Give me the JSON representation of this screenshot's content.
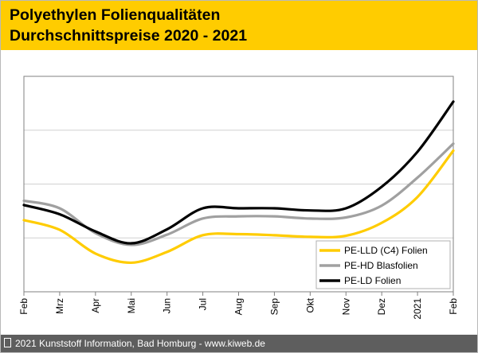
{
  "header": {
    "title_line1": "Polyethylen Folienqualitäten",
    "title_line2": "Durchschnittspreise 2020 - 2021"
  },
  "footer": {
    "copyright": "2021 Kunststoff Information, Bad Homburg - www.kiweb.de"
  },
  "colors": {
    "header_bg": "#ffcc00",
    "footer_bg": "#5e5e5e",
    "gridline": "#d0d0d0"
  },
  "chart_data": {
    "type": "line",
    "title": "Polyethylen Folienqualitäten Durchschnittspreise 2020 - 2021",
    "xlabel": "",
    "ylabel": "",
    "categories": [
      "Feb",
      "Mrz",
      "Apr",
      "Mai",
      "Jun",
      "Jul",
      "Aug",
      "Sep",
      "Okt",
      "Nov",
      "Dez",
      "2021",
      "Feb"
    ],
    "ylim": [
      0,
      4
    ],
    "grid": true,
    "legend_position": "bottom-right",
    "series": [
      {
        "name": "PE-LLD (C4) Folien",
        "color": "#ffcc00",
        "values": [
          1.33,
          1.15,
          0.71,
          0.54,
          0.74,
          1.05,
          1.07,
          1.05,
          1.02,
          1.04,
          1.28,
          1.76,
          2.62
        ]
      },
      {
        "name": "PE-HD Blasfolien",
        "color": "#a0a0a0",
        "values": [
          1.69,
          1.55,
          1.09,
          0.87,
          1.06,
          1.36,
          1.4,
          1.4,
          1.36,
          1.38,
          1.6,
          2.12,
          2.75
        ]
      },
      {
        "name": "PE-LD Folien",
        "color": "#000000",
        "values": [
          1.61,
          1.44,
          1.12,
          0.9,
          1.16,
          1.55,
          1.55,
          1.55,
          1.51,
          1.55,
          1.95,
          2.6,
          3.53
        ]
      }
    ]
  }
}
